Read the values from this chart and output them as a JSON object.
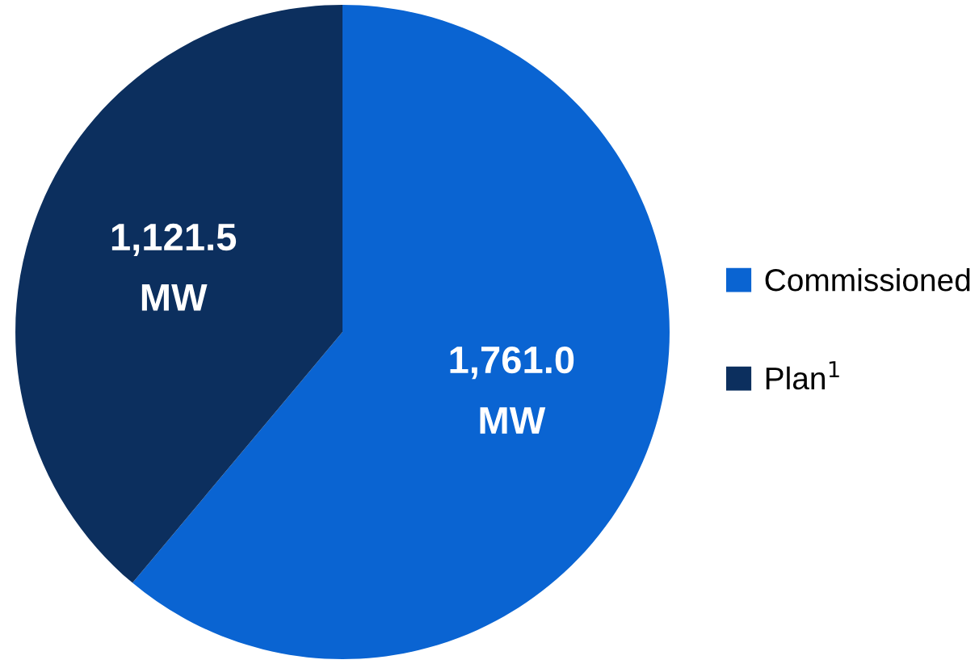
{
  "chart_data": {
    "type": "pie",
    "categories": [
      "Commissioned",
      "Plan$^{1}$"
    ],
    "values": [
      1761.0,
      1121.5
    ],
    "colors": [
      "#0a64d2",
      "#0c2f5e"
    ],
    "value_labels": [
      "1,761.0\nMW",
      "1,121.5\nMW"
    ],
    "legend": "right"
  }
}
